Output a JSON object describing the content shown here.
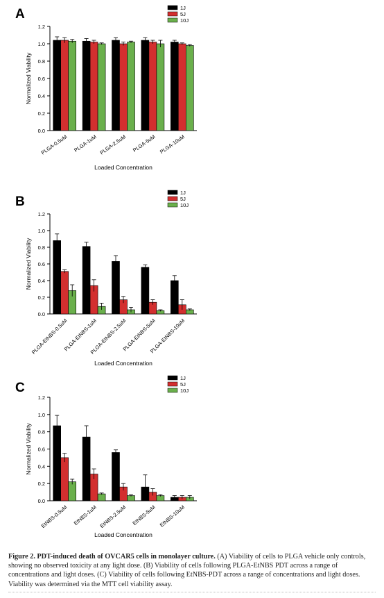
{
  "colors": {
    "1J": "#000000",
    "5J": "#d32f2f",
    "10J": "#6ab04c"
  },
  "chart_data": [
    {
      "panel_label": "A",
      "type": "bar",
      "categories": [
        "PLGA-0.5uM",
        "PLGA-1uM",
        "PLGA-2.5uM",
        "PLGA-5uM",
        "PLGA-10uM"
      ],
      "series": [
        {
          "name": "1J",
          "values": [
            1.04,
            1.03,
            1.04,
            1.04,
            1.02
          ],
          "errors": [
            0.04,
            0.03,
            0.03,
            0.03,
            0.02
          ]
        },
        {
          "name": "5J",
          "values": [
            1.04,
            1.02,
            1.0,
            1.02,
            1.0
          ],
          "errors": [
            0.03,
            0.02,
            0.02,
            0.02,
            0.01
          ]
        },
        {
          "name": "10J",
          "values": [
            1.03,
            1.0,
            1.02,
            1.0,
            0.98
          ],
          "errors": [
            0.02,
            0.01,
            0.01,
            0.04,
            0.01
          ]
        }
      ],
      "xlabel": "Loaded Concentration",
      "ylabel": "Normalized Viability",
      "ylim": [
        0,
        1.2
      ],
      "yticks": [
        "0.0",
        "0.2",
        "0.4",
        "0.6",
        "0.8",
        "1.0",
        "1.2"
      ],
      "legend": "top-right"
    },
    {
      "panel_label": "B",
      "type": "bar",
      "categories": [
        "PLGA-EtNBS-0.5uM",
        "PLGA-EtNBS-1uM",
        "PLGA-EtNBS-2.5uM",
        "PLGA-EtNBS-5uM",
        "PLGA-EtNBS-10uM"
      ],
      "series": [
        {
          "name": "1J",
          "values": [
            0.88,
            0.81,
            0.63,
            0.56,
            0.4
          ],
          "errors": [
            0.08,
            0.05,
            0.07,
            0.03,
            0.06
          ]
        },
        {
          "name": "5J",
          "values": [
            0.51,
            0.34,
            0.17,
            0.14,
            0.11
          ],
          "errors": [
            0.02,
            0.07,
            0.04,
            0.03,
            0.06
          ]
        },
        {
          "name": "10J",
          "values": [
            0.28,
            0.09,
            0.05,
            0.04,
            0.05
          ],
          "errors": [
            0.07,
            0.04,
            0.03,
            0.01,
            0.01
          ]
        }
      ],
      "xlabel": "Loaded Concentration",
      "ylabel": "Normalized Viability",
      "ylim": [
        0,
        1.2
      ],
      "yticks": [
        "0.0",
        "0.2",
        "0.4",
        "0.6",
        "0.8",
        "1.0",
        "1.2"
      ],
      "legend": "top-right"
    },
    {
      "panel_label": "C",
      "type": "bar",
      "categories": [
        "EtNBS-0.5uM",
        "EtNBS-1uM",
        "EtNBS-2.5uM",
        "EtNBS-5uM",
        "EtNBS-10uM"
      ],
      "series": [
        {
          "name": "1J",
          "values": [
            0.87,
            0.74,
            0.56,
            0.16,
            0.04
          ],
          "errors": [
            0.12,
            0.13,
            0.03,
            0.14,
            0.02
          ]
        },
        {
          "name": "5J",
          "values": [
            0.5,
            0.31,
            0.16,
            0.1,
            0.04
          ],
          "errors": [
            0.05,
            0.06,
            0.04,
            0.04,
            0.02
          ]
        },
        {
          "name": "10J",
          "values": [
            0.22,
            0.08,
            0.06,
            0.06,
            0.04
          ],
          "errors": [
            0.03,
            0.01,
            0.01,
            0.01,
            0.02
          ]
        }
      ],
      "xlabel": "Loaded Concentration",
      "ylabel": "Normalized Viability",
      "ylim": [
        0,
        1.2
      ],
      "yticks": [
        "0.0",
        "0.2",
        "0.4",
        "0.6",
        "0.8",
        "1.0",
        "1.2"
      ],
      "legend": "top-right"
    }
  ],
  "caption": {
    "title": "Figure 2.  PDT-induced death of OVCAR5 cells in monolayer culture.",
    "body": " (A) Viability of cells to PLGA vehicle only controls, showing no observed toxicity at any light dose. (B) Viability of cells following PLGA-EtNBS PDT across a range of concentrations and light doses. (C) Viability of cells following EtNBS-PDT across a range of concentrations and light doses. Viability was determined via the MTT cell viability assay."
  }
}
